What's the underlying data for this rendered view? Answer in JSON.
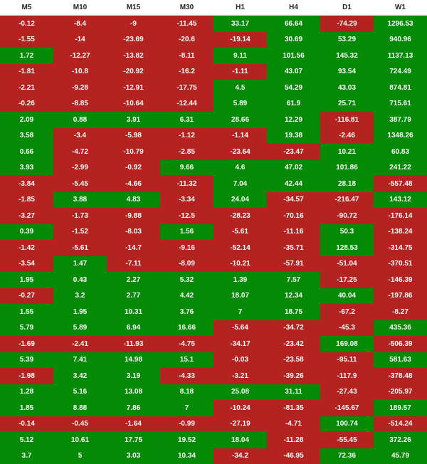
{
  "colors": {
    "positive": "#058a05",
    "negative": "#b4231f",
    "header_bg": "#ffffff"
  },
  "headers": [
    "M5",
    "M10",
    "M15",
    "M30",
    "H1",
    "H4",
    "D1",
    "W1"
  ],
  "rows": [
    [
      "-0.12",
      "-8.4",
      "-9",
      "-11.45",
      "33.17",
      "66.64",
      "-74.29",
      "1296.53"
    ],
    [
      "-1.55",
      "-14",
      "-23.69",
      "-20.6",
      "-19.14",
      "30.69",
      "53.29",
      "940.96"
    ],
    [
      "1.72",
      "-12.27",
      "-13.82",
      "-8.11",
      "9.11",
      "101.56",
      "145.32",
      "1137.13"
    ],
    [
      "-1.81",
      "-10.8",
      "-20.92",
      "-16.2",
      "-1.11",
      "43.07",
      "93.54",
      "724.49"
    ],
    [
      "-2.21",
      "-9.28",
      "-12.91",
      "-17.75",
      "4.5",
      "54.29",
      "43.03",
      "874.81"
    ],
    [
      "-0.26",
      "-8.85",
      "-10.64",
      "-12.44",
      "5.89",
      "61.9",
      "25.71",
      "715.61"
    ],
    [
      "2.09",
      "0.88",
      "3.91",
      "6.31",
      "28.66",
      "12.29",
      "-116.81",
      "387.79"
    ],
    [
      "3.58",
      "-3.4",
      "-5.98",
      "-1.12",
      "-1.14",
      "19.38",
      "-2.46",
      "1348.26"
    ],
    [
      "0.66",
      "-4.72",
      "-10.79",
      "-2.85",
      "-23.64",
      "-23.47",
      "10.21",
      "60.83"
    ],
    [
      "3.93",
      "-2.99",
      "-0.92",
      "9.66",
      "4.6",
      "47.02",
      "101.86",
      "241.22"
    ],
    [
      "-3.84",
      "-5.45",
      "-4.66",
      "-11.32",
      "7.04",
      "42.44",
      "28.18",
      "-557.48"
    ],
    [
      "-1.85",
      "3.88",
      "4.83",
      "-3.34",
      "24.04",
      "-34.57",
      "-216.47",
      "143.12"
    ],
    [
      "-3.27",
      "-1.73",
      "-9.88",
      "-12.5",
      "-28.23",
      "-70.16",
      "-90.72",
      "-176.14"
    ],
    [
      "0.39",
      "-1.52",
      "-8.03",
      "1.56",
      "-5.61",
      "-11.16",
      "50.3",
      "-138.24"
    ],
    [
      "-1.42",
      "-5.61",
      "-14.7",
      "-9.16",
      "-52.14",
      "-35.71",
      "128.53",
      "-314.75"
    ],
    [
      "-3.54",
      "1.47",
      "-7.11",
      "-8.09",
      "-10.21",
      "-57.91",
      "-51.04",
      "-370.51"
    ],
    [
      "1.95",
      "0.43",
      "2.27",
      "5.32",
      "1.39",
      "7.57",
      "-17.25",
      "-146.39"
    ],
    [
      "-0.27",
      "3.2",
      "2.77",
      "4.42",
      "18.07",
      "12.34",
      "40.04",
      "-197.86"
    ],
    [
      "1.55",
      "1.95",
      "10.31",
      "3.76",
      "7",
      "18.75",
      "-67.2",
      "-8.27"
    ],
    [
      "5.79",
      "5.89",
      "6.94",
      "16.66",
      "-5.64",
      "-34.72",
      "-45.3",
      "435.36"
    ],
    [
      "-1.69",
      "-2.41",
      "-11.93",
      "-4.75",
      "-34.17",
      "-23.42",
      "169.08",
      "-506.39"
    ],
    [
      "5.39",
      "7.41",
      "14.98",
      "15.1",
      "-0.03",
      "-23.58",
      "-95.11",
      "581.63"
    ],
    [
      "-1.98",
      "3.42",
      "3.19",
      "-4.33",
      "-3.21",
      "-39.26",
      "-117.9",
      "-378.48"
    ],
    [
      "1.28",
      "5.16",
      "13.08",
      "8.18",
      "25.08",
      "31.11",
      "-27.43",
      "-205.97"
    ],
    [
      "1.85",
      "8.88",
      "7.86",
      "7",
      "-10.24",
      "-81.35",
      "-145.67",
      "189.57"
    ],
    [
      "-0.14",
      "-0.45",
      "-1.64",
      "-0.99",
      "-27.19",
      "-4.71",
      "100.74",
      "-514.24"
    ],
    [
      "5.12",
      "10.61",
      "17.75",
      "19.52",
      "18.04",
      "-11.28",
      "-55.45",
      "372.26"
    ],
    [
      "3.7",
      "5",
      "3.03",
      "10.34",
      "-34.2",
      "-46.95",
      "72.36",
      "45.79"
    ]
  ]
}
